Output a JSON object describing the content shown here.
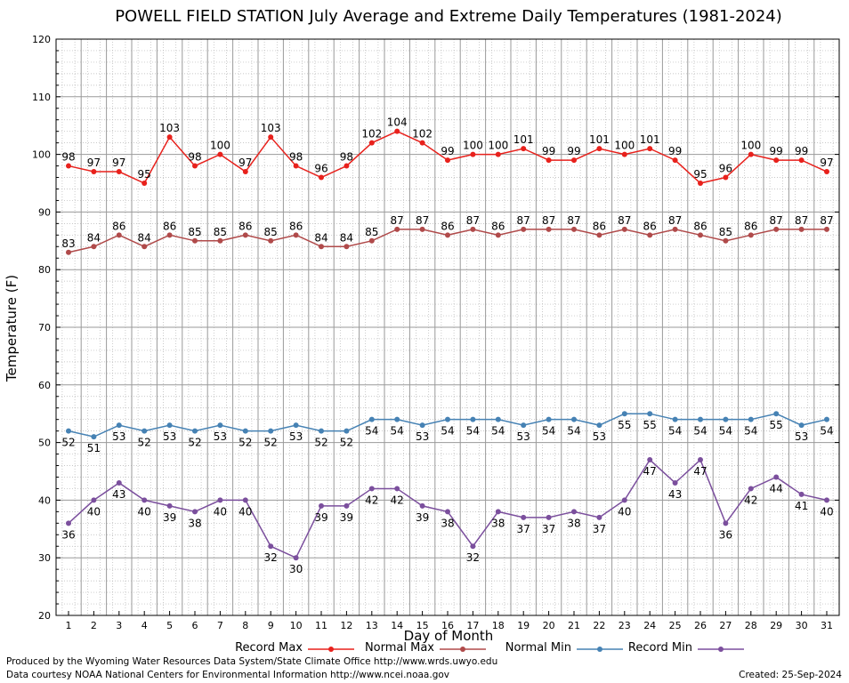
{
  "chart_data": {
    "type": "line",
    "title": "POWELL FIELD STATION July Average and Extreme Daily Temperatures (1981-2024)",
    "xlabel": "Day of Month",
    "ylabel": "Temperature (F)",
    "ylim": [
      20,
      120
    ],
    "yticks": [
      20,
      30,
      40,
      50,
      60,
      70,
      80,
      90,
      100,
      110,
      120
    ],
    "x": [
      1,
      2,
      3,
      4,
      5,
      6,
      7,
      8,
      9,
      10,
      11,
      12,
      13,
      14,
      15,
      16,
      17,
      18,
      19,
      20,
      21,
      22,
      23,
      24,
      25,
      26,
      27,
      28,
      29,
      30,
      31
    ],
    "grid": true,
    "legend_position": "bottom",
    "series": [
      {
        "name": "Record Max",
        "color": "#e8211c",
        "values": [
          98,
          97,
          97,
          95,
          103,
          98,
          100,
          97,
          103,
          98,
          96,
          98,
          102,
          104,
          102,
          99,
          100,
          100,
          101,
          99,
          99,
          101,
          100,
          101,
          99,
          95,
          96,
          100,
          99,
          99,
          97
        ]
      },
      {
        "name": "Normal Max",
        "color": "#b04a4a",
        "values": [
          83,
          84,
          86,
          84,
          86,
          85,
          85,
          86,
          85,
          86,
          84,
          84,
          85,
          87,
          87,
          86,
          87,
          86,
          87,
          87,
          87,
          86,
          87,
          86,
          87,
          86,
          85,
          86,
          87,
          87,
          87
        ]
      },
      {
        "name": "Normal Min",
        "color": "#4682b4",
        "values": [
          52,
          51,
          53,
          52,
          53,
          52,
          53,
          52,
          52,
          53,
          52,
          52,
          54,
          54,
          53,
          54,
          54,
          54,
          53,
          54,
          54,
          53,
          55,
          55,
          54,
          54,
          54,
          54,
          55,
          53,
          54
        ]
      },
      {
        "name": "Record Min",
        "color": "#7b4f9d",
        "values": [
          36,
          40,
          43,
          40,
          39,
          38,
          40,
          40,
          32,
          30,
          39,
          39,
          42,
          42,
          39,
          38,
          32,
          38,
          37,
          37,
          38,
          37,
          40,
          47,
          43,
          47,
          36,
          42,
          44,
          41,
          40
        ]
      }
    ]
  },
  "footer": {
    "produced_by": "Produced by the Wyoming Water Resources Data System/State Climate Office http://www.wrds.uwyo.edu",
    "data_courtesy": "Data courtesy NOAA National Centers for Environmental Information http://www.ncei.noaa.gov",
    "created": "Created:  25-Sep-2024"
  }
}
